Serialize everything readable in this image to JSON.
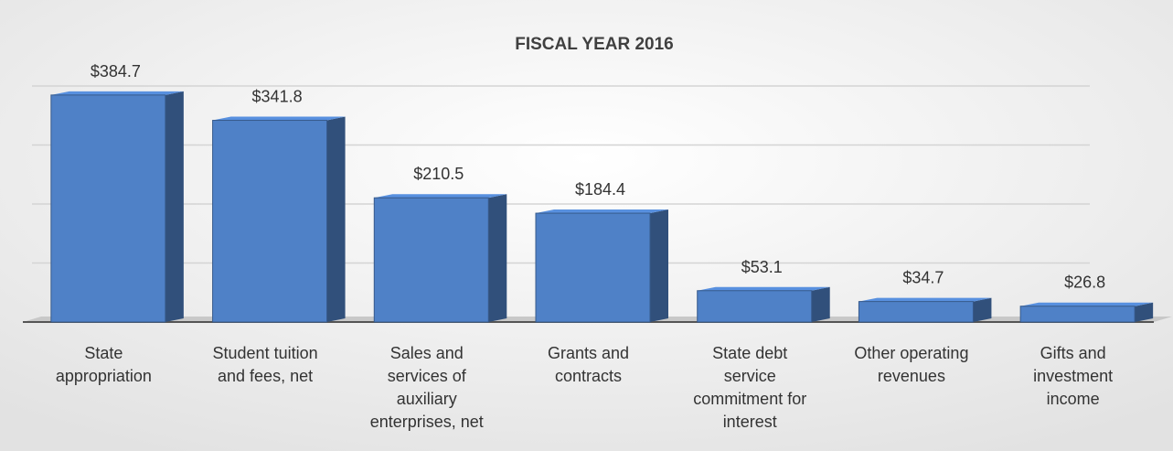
{
  "chart_data": {
    "type": "bar3d",
    "title": "FISCAL YEAR 2016",
    "categories": [
      "State appropriation",
      "Student tuition and fees, net",
      "Sales and services of auxiliary enterprises, net",
      "Grants and contracts",
      "State debt service commitment for interest",
      "Other operating revenues",
      "Gifts and investment income"
    ],
    "values": [
      384.7,
      341.8,
      210.5,
      184.4,
      53.1,
      34.7,
      26.8
    ],
    "value_labels": [
      "$384.7",
      "$341.8",
      "$210.5",
      "$184.4",
      "$53.1",
      "$34.7",
      "$26.8"
    ],
    "color": "#4f81c7",
    "ylim": [
      0,
      400
    ],
    "yticks": [
      0,
      100,
      200,
      300,
      400
    ],
    "grid": true
  }
}
